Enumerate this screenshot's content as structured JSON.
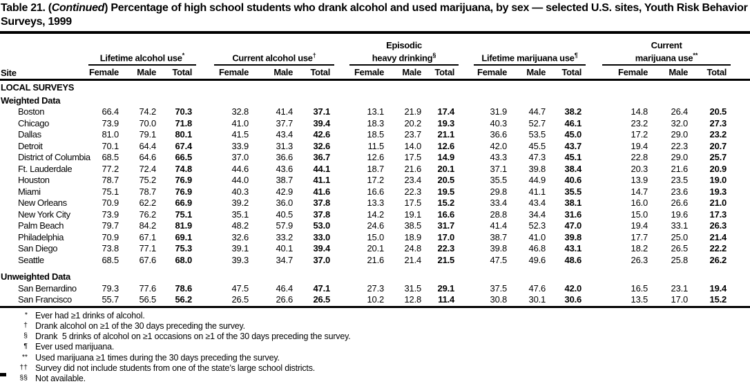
{
  "title": {
    "prefix": "Table 21. (",
    "continued": "Continued",
    "suffix": ") Percentage of high school students who drank alcohol and used marijuana, by sex — selected U.S. sites, Youth Risk Behavior Surveys, 1999"
  },
  "table": {
    "site_header": "Site",
    "sub_headers": [
      "Female",
      "Male",
      "Total"
    ],
    "groups": [
      {
        "lines": [
          "Lifetime alcohol use"
        ],
        "sup": "*"
      },
      {
        "lines": [
          "Current alcohol use"
        ],
        "sup": "†"
      },
      {
        "lines": [
          "Episodic",
          "heavy drinking"
        ],
        "sup": "§"
      },
      {
        "lines": [
          "Lifetime marijuana use"
        ],
        "sup": "¶"
      },
      {
        "lines": [
          "Current",
          "marijuana use"
        ],
        "sup": "**"
      }
    ],
    "rows": [
      {
        "type": "section",
        "label": "LOCAL SURVEYS"
      },
      {
        "type": "section",
        "label": "Weighted Data"
      },
      {
        "type": "data",
        "site": "Boston",
        "values": [
          "66.4",
          "74.2",
          "70.3",
          "32.8",
          "41.4",
          "37.1",
          "13.1",
          "21.9",
          "17.4",
          "31.9",
          "44.7",
          "38.2",
          "14.8",
          "26.4",
          "20.5"
        ]
      },
      {
        "type": "data",
        "site": "Chicago",
        "values": [
          "73.9",
          "70.0",
          "71.8",
          "41.0",
          "37.7",
          "39.4",
          "18.3",
          "20.2",
          "19.3",
          "40.3",
          "52.7",
          "46.1",
          "23.2",
          "32.0",
          "27.3"
        ]
      },
      {
        "type": "data",
        "site": "Dallas",
        "values": [
          "81.0",
          "79.1",
          "80.1",
          "41.5",
          "43.4",
          "42.6",
          "18.5",
          "23.7",
          "21.1",
          "36.6",
          "53.5",
          "45.0",
          "17.2",
          "29.0",
          "23.2"
        ]
      },
      {
        "type": "data",
        "site": "Detroit",
        "values": [
          "70.1",
          "64.4",
          "67.4",
          "33.9",
          "31.3",
          "32.6",
          "11.5",
          "14.0",
          "12.6",
          "42.0",
          "45.5",
          "43.7",
          "19.4",
          "22.3",
          "20.7"
        ]
      },
      {
        "type": "data",
        "site": "District of Columbia",
        "values": [
          "68.5",
          "64.6",
          "66.5",
          "37.0",
          "36.6",
          "36.7",
          "12.6",
          "17.5",
          "14.9",
          "43.3",
          "47.3",
          "45.1",
          "22.8",
          "29.0",
          "25.7"
        ]
      },
      {
        "type": "data",
        "site": "Ft. Lauderdale",
        "values": [
          "77.2",
          "72.4",
          "74.8",
          "44.6",
          "43.6",
          "44.1",
          "18.7",
          "21.6",
          "20.1",
          "37.1",
          "39.8",
          "38.4",
          "20.3",
          "21.6",
          "20.9"
        ]
      },
      {
        "type": "data",
        "site": "Houston",
        "values": [
          "78.7",
          "75.2",
          "76.9",
          "44.0",
          "38.7",
          "41.1",
          "17.2",
          "23.4",
          "20.5",
          "35.5",
          "44.9",
          "40.6",
          "13.9",
          "23.5",
          "19.0"
        ]
      },
      {
        "type": "data",
        "site": "Miami",
        "values": [
          "75.1",
          "78.7",
          "76.9",
          "40.3",
          "42.9",
          "41.6",
          "16.6",
          "22.3",
          "19.5",
          "29.8",
          "41.1",
          "35.5",
          "14.7",
          "23.6",
          "19.3"
        ]
      },
      {
        "type": "data",
        "site": "New Orleans",
        "values": [
          "70.9",
          "62.2",
          "66.9",
          "39.2",
          "36.0",
          "37.8",
          "13.3",
          "17.5",
          "15.2",
          "33.4",
          "43.4",
          "38.1",
          "16.0",
          "26.6",
          "21.0"
        ]
      },
      {
        "type": "data",
        "site": "New York City",
        "values": [
          "73.9",
          "76.2",
          "75.1",
          "35.1",
          "40.5",
          "37.8",
          "14.2",
          "19.1",
          "16.6",
          "28.8",
          "34.4",
          "31.6",
          "15.0",
          "19.6",
          "17.3"
        ]
      },
      {
        "type": "data",
        "site": "Palm Beach",
        "values": [
          "79.7",
          "84.2",
          "81.9",
          "48.2",
          "57.9",
          "53.0",
          "24.6",
          "38.5",
          "31.7",
          "41.4",
          "52.3",
          "47.0",
          "19.4",
          "33.1",
          "26.3"
        ]
      },
      {
        "type": "data",
        "site": "Philadelphia",
        "values": [
          "70.9",
          "67.1",
          "69.1",
          "32.6",
          "33.2",
          "33.0",
          "15.0",
          "18.9",
          "17.0",
          "38.7",
          "41.0",
          "39.8",
          "17.7",
          "25.0",
          "21.4"
        ]
      },
      {
        "type": "data",
        "site": "San Diego",
        "values": [
          "73.8",
          "77.1",
          "75.3",
          "39.1",
          "40.1",
          "39.4",
          "20.1",
          "24.8",
          "22.3",
          "39.8",
          "46.8",
          "43.1",
          "18.2",
          "26.5",
          "22.2"
        ]
      },
      {
        "type": "data",
        "site": "Seattle",
        "values": [
          "68.5",
          "67.6",
          "68.0",
          "39.3",
          "34.7",
          "37.0",
          "21.6",
          "21.4",
          "21.5",
          "47.5",
          "49.6",
          "48.6",
          "26.3",
          "25.8",
          "26.2"
        ]
      },
      {
        "type": "section",
        "label": "Unweighted Data",
        "spaced": true
      },
      {
        "type": "data",
        "site": "San Bernardino",
        "values": [
          "79.3",
          "77.6",
          "78.6",
          "47.5",
          "46.4",
          "47.1",
          "27.3",
          "31.5",
          "29.1",
          "37.5",
          "47.6",
          "42.0",
          "16.5",
          "23.1",
          "19.4"
        ]
      },
      {
        "type": "data",
        "site": "San Francisco",
        "values": [
          "55.7",
          "56.5",
          "56.2",
          "26.5",
          "26.6",
          "26.5",
          "10.2",
          "12.8",
          "11.4",
          "30.8",
          "30.1",
          "30.6",
          "13.5",
          "17.0",
          "15.2"
        ]
      }
    ]
  },
  "footnotes": [
    {
      "marker": "*",
      "text": "Ever had ≥1 drinks of alcohol."
    },
    {
      "marker": "†",
      "text": "Drank alcohol on ≥1 of the 30 days preceding the survey."
    },
    {
      "marker": "§",
      "text": "Drank  5 drinks of alcohol on ≥1 occasions on ≥1 of the 30 days preceding the survey."
    },
    {
      "marker": "¶",
      "text": "Ever used marijuana."
    },
    {
      "marker": "**",
      "text": "Used marijuana ≥1 times during the 30 days preceding the survey."
    },
    {
      "marker": "††",
      "text": "Survey did not include students from one of the state’s large school districts."
    },
    {
      "marker": "§§",
      "text": "Not available."
    }
  ]
}
